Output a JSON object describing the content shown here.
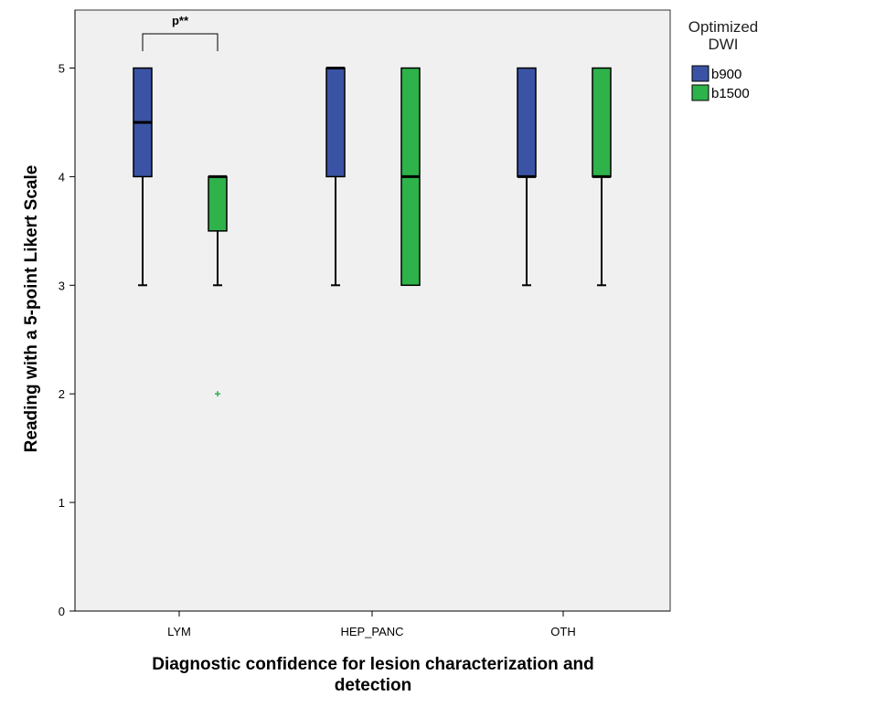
{
  "chart_data": {
    "type": "boxplot",
    "xlabel": [
      "Diagnostic confidence for lesion characterization and",
      "detection"
    ],
    "ylabel": "Reading with a 5-point Likert Scale",
    "ylim": [
      0,
      5.5
    ],
    "yticks": [
      0,
      1,
      2,
      3,
      4,
      5
    ],
    "categories": [
      "LYM",
      "HEP_PANC",
      "OTH"
    ],
    "legend": {
      "title": [
        "Optimized",
        "DWI"
      ],
      "placement": "right",
      "entries": [
        {
          "name": "b900",
          "color": "#3a53a4"
        },
        {
          "name": "b1500",
          "color": "#2eb24a"
        }
      ]
    },
    "series": [
      {
        "name": "b900",
        "color": "#3a53a4",
        "boxes": [
          {
            "category": "LYM",
            "min": 3,
            "q1": 4,
            "median": 4.5,
            "q3": 5,
            "max": 5,
            "outliers": []
          },
          {
            "category": "HEP_PANC",
            "min": 3,
            "q1": 4,
            "median": 5,
            "q3": 5,
            "max": 5,
            "outliers": []
          },
          {
            "category": "OTH",
            "min": 3,
            "q1": 4,
            "median": 4,
            "q3": 5,
            "max": 5,
            "outliers": []
          }
        ]
      },
      {
        "name": "b1500",
        "color": "#2eb24a",
        "boxes": [
          {
            "category": "LYM",
            "min": 3,
            "q1": 3.5,
            "median": 4,
            "q3": 4,
            "max": 4,
            "outliers": [
              2
            ]
          },
          {
            "category": "HEP_PANC",
            "min": 3,
            "q1": 3,
            "median": 4,
            "q3": 5,
            "max": 5,
            "outliers": []
          },
          {
            "category": "OTH",
            "min": 3,
            "q1": 4,
            "median": 4,
            "q3": 5,
            "max": 5,
            "outliers": []
          }
        ]
      }
    ],
    "annotations": [
      {
        "text": "p**",
        "category": "LYM",
        "between": [
          "b900",
          "b1500"
        ]
      }
    ],
    "grid": false,
    "plot_background": "#f0f0f0"
  }
}
